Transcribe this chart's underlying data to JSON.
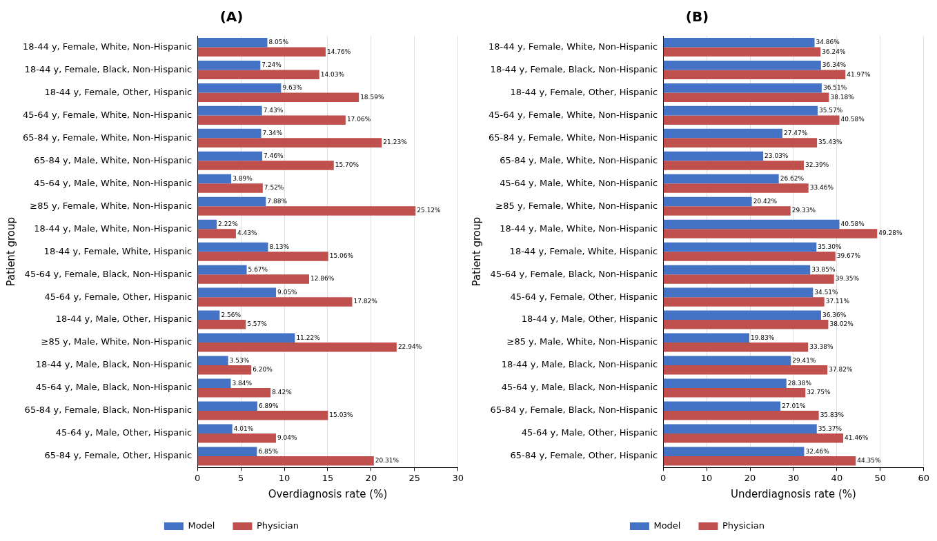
{
  "chart_data": [
    {
      "type": "bar",
      "title": "(A)",
      "orientation": "horizontal",
      "xlabel": "Overdiagnosis rate (%)",
      "ylabel": "Patient group",
      "categories": [
        "18-44 y, Female, White, Non-Hispanic",
        "18-44 y, Female, Black, Non-Hispanic",
        "18-44 y, Female, Other, Hispanic",
        "45-64 y, Female, White, Non-Hispanic",
        "65-84 y, Female, White, Non-Hispanic",
        "65-84 y, Male, White, Non-Hispanic",
        "45-64 y, Male, White, Non-Hispanic",
        "≥85 y, Female, White, Non-Hispanic",
        "18-44 y, Male, White, Non-Hispanic",
        "18-44 y, Female, White, Hispanic",
        "45-64 y, Female, Black, Non-Hispanic",
        "45-64 y, Female, Other, Hispanic",
        "18-44 y, Male, Other, Hispanic",
        "≥85 y, Male, White, Non-Hispanic",
        "18-44 y, Male, Black, Non-Hispanic",
        "45-64 y, Male, Black, Non-Hispanic",
        "65-84 y, Female, Black, Non-Hispanic",
        "45-64 y, Male, Other, Hispanic",
        "65-84 y, Female, Other, Hispanic"
      ],
      "series": [
        {
          "name": "Model",
          "color": "#4472c4",
          "values": [
            8.05,
            7.24,
            9.63,
            7.43,
            7.34,
            7.46,
            3.89,
            7.88,
            2.22,
            8.13,
            5.67,
            9.05,
            2.56,
            11.22,
            3.53,
            3.84,
            6.89,
            4.01,
            6.85
          ],
          "value_labels": [
            "8.05%",
            "7.24%",
            "9.63%",
            "7.43%",
            "7.34%",
            "7.46%",
            "3.89%",
            "7.88%",
            "2.22%",
            "8.13%",
            "5.67%",
            "9.05%",
            "2.56%",
            "11.22%",
            "3.53%",
            "3.84%",
            "6.89%",
            "4.01%",
            "6.85%"
          ]
        },
        {
          "name": "Physician",
          "color": "#c0504d",
          "values": [
            14.76,
            14.03,
            18.59,
            17.06,
            21.23,
            15.7,
            7.52,
            25.12,
            4.43,
            15.06,
            12.86,
            17.82,
            5.57,
            22.94,
            6.2,
            8.42,
            15.03,
            9.04,
            20.31
          ],
          "value_labels": [
            "14.76%",
            "14.03%",
            "18.59%",
            "17.06%",
            "21.23%",
            "15.70%",
            "7.52%",
            "25.12%",
            "4.43%",
            "15.06%",
            "12.86%",
            "17.82%",
            "5.57%",
            "22.94%",
            "6.20%",
            "8.42%",
            "15.03%",
            "9.04%",
            "20.31%"
          ]
        }
      ],
      "xlim": [
        0,
        30
      ],
      "xticks": [
        0,
        5,
        10,
        15,
        20,
        25,
        30
      ],
      "grid": "x",
      "legend": "bottom"
    },
    {
      "type": "bar",
      "title": "(B)",
      "orientation": "horizontal",
      "xlabel": "Underdiagnosis rate (%)",
      "ylabel": "Patient group",
      "categories": [
        "18-44 y, Female, White, Non-Hispanic",
        "18-44 y, Female, Black, Non-Hispanic",
        "18-44 y, Female, Other, Hispanic",
        "45-64 y, Female, White, Non-Hispanic",
        "65-84 y, Female, White, Non-Hispanic",
        "65-84 y, Male, White, Non-Hispanic",
        "45-64 y, Male, White, Non-Hispanic",
        "≥85 y, Female, White, Non-Hispanic",
        "18-44 y, Male, White, Non-Hispanic",
        "18-44 y, Female, White, Hispanic",
        "45-64 y, Female, Black, Non-Hispanic",
        "45-64 y, Female, Other, Hispanic",
        "18-44 y, Male, Other, Hispanic",
        "≥85 y, Male, White, Non-Hispanic",
        "18-44 y, Male, Black, Non-Hispanic",
        "45-64 y, Male, Black, Non-Hispanic",
        "65-84 y, Female, Black, Non-Hispanic",
        "45-64 y, Male, Other, Hispanic",
        "65-84 y, Female, Other, Hispanic"
      ],
      "series": [
        {
          "name": "Model",
          "color": "#4472c4",
          "values": [
            34.86,
            36.34,
            36.51,
            35.57,
            27.47,
            23.03,
            26.62,
            20.42,
            40.58,
            35.3,
            33.85,
            34.51,
            36.36,
            19.83,
            29.41,
            28.38,
            27.01,
            35.37,
            32.46
          ],
          "value_labels": [
            "34.86%",
            "36.34%",
            "36.51%",
            "35.57%",
            "27.47%",
            "23.03%",
            "26.62%",
            "20.42%",
            "40.58%",
            "35.30%",
            "33.85%",
            "34.51%",
            "36.36%",
            "19.83%",
            "29.41%",
            "28.38%",
            "27.01%",
            "35.37%",
            "32.46%"
          ]
        },
        {
          "name": "Physician",
          "color": "#c0504d",
          "values": [
            36.24,
            41.97,
            38.18,
            40.58,
            35.43,
            32.39,
            33.46,
            29.33,
            49.28,
            39.67,
            39.35,
            37.11,
            38.02,
            33.38,
            37.82,
            32.75,
            35.83,
            41.46,
            44.35
          ],
          "value_labels": [
            "36.24%",
            "41.97%",
            "38.18%",
            "40.58%",
            "35.43%",
            "32.39%",
            "33.46%",
            "29.33%",
            "49.28%",
            "39.67%",
            "39.35%",
            "37.11%",
            "38.02%",
            "33.38%",
            "37.82%",
            "32.75%",
            "35.83%",
            "41.46%",
            "44.35%"
          ]
        }
      ],
      "xlim": [
        0,
        60
      ],
      "xticks": [
        0,
        10,
        20,
        30,
        40,
        50,
        60
      ],
      "grid": "x",
      "legend": "bottom"
    }
  ]
}
